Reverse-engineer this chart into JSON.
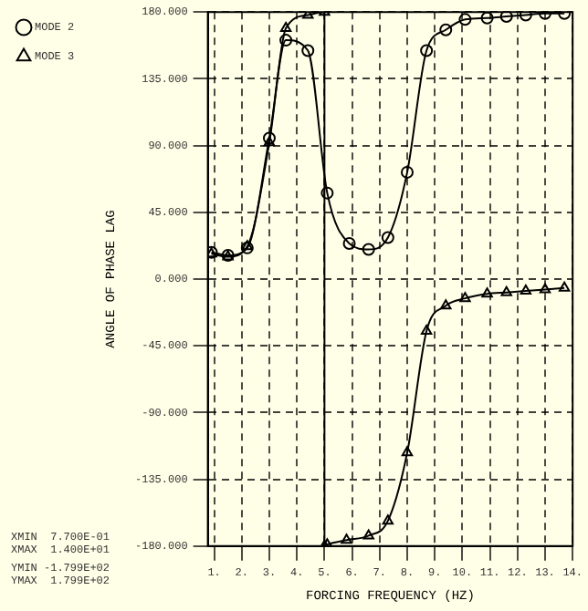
{
  "chart_data": {
    "type": "line",
    "xlabel": "FORCING FREQUENCY (HZ)",
    "ylabel": "ANGLE OF PHASE LAG",
    "series": [
      {
        "name": "MODE 2",
        "color": "#000000",
        "marker": "circle",
        "x": [
          0.9,
          1.5,
          2.2,
          3.0,
          3.6,
          4.4,
          5.1,
          5.9,
          6.6,
          7.3,
          8.0,
          8.7,
          9.4,
          10.1,
          10.9,
          11.6,
          12.3,
          13.0,
          13.7
        ],
        "values": [
          18,
          16,
          21,
          95,
          161,
          154,
          58,
          24,
          20,
          28,
          72,
          154,
          168,
          175,
          176,
          177,
          178,
          179,
          179
        ]
      },
      {
        "name": "MODE 3",
        "color": "#000000",
        "marker": "triangle",
        "x": [
          0.9,
          1.5,
          2.2,
          3.0,
          3.6,
          4.4,
          5.0,
          5.0,
          5.1,
          5.8,
          6.6,
          7.3,
          8.0,
          8.7,
          9.4,
          10.1,
          10.9,
          11.6,
          12.3,
          13.0,
          13.7
        ],
        "values": [
          17,
          15,
          22,
          92,
          169,
          178,
          180,
          -180,
          -179,
          -176,
          -173,
          -163,
          -117,
          -35,
          -18,
          -13,
          -10,
          -9,
          -8,
          -7,
          -6
        ]
      }
    ],
    "xlim": [
      0.77,
      14
    ],
    "xticks": [
      {
        "value": 1,
        "label": "1."
      },
      {
        "value": 2,
        "label": "2."
      },
      {
        "value": 3,
        "label": "3."
      },
      {
        "value": 4,
        "label": "4."
      },
      {
        "value": 5,
        "label": "5."
      },
      {
        "value": 6,
        "label": "6."
      },
      {
        "value": 7,
        "label": "7."
      },
      {
        "value": 8,
        "label": "8."
      },
      {
        "value": 9,
        "label": "9."
      },
      {
        "value": 10,
        "label": "10."
      },
      {
        "value": 11,
        "label": "11."
      },
      {
        "value": 12,
        "label": "12."
      },
      {
        "value": 13,
        "label": "13."
      },
      {
        "value": 14,
        "label": "14."
      }
    ],
    "ylim": [
      -180,
      180
    ],
    "yticks": [
      {
        "value": -180,
        "label": "-180.000"
      },
      {
        "value": -135,
        "label": "-135.000"
      },
      {
        "value": -90,
        "label": "-90.000"
      },
      {
        "value": -45,
        "label": "-45.000"
      },
      {
        "value": 0,
        "label": "0.000"
      },
      {
        "value": 45,
        "label": "45.000"
      },
      {
        "value": 90,
        "label": "90.000"
      },
      {
        "value": 135,
        "label": "135.000"
      },
      {
        "value": 180,
        "label": "180.000"
      }
    ],
    "grid": true,
    "legend": "left",
    "line_style": "solid",
    "annotations": [
      "XMIN  7.700E-01",
      "XMAX  1.400E+01",
      "YMIN -1.799E+02",
      "YMAX  1.799E+02"
    ]
  }
}
